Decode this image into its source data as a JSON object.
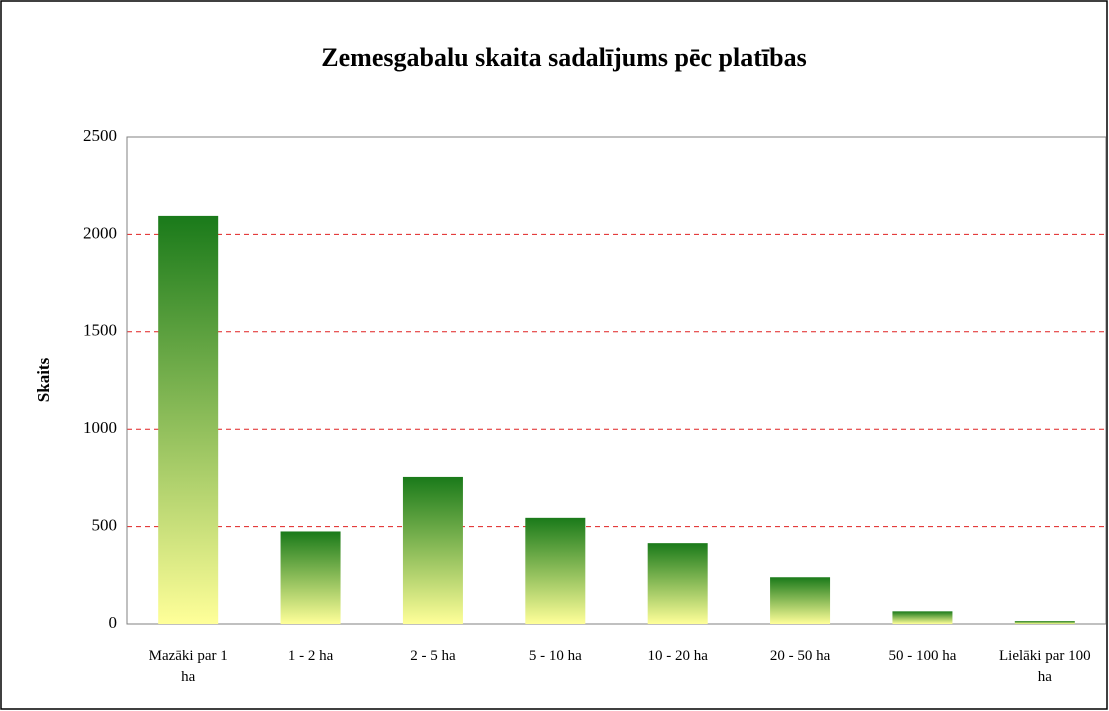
{
  "chart_data": {
    "type": "bar",
    "title": "Zemesgabalu skaita sadalījums pēc platības",
    "ylabel": "Skaits",
    "categories": [
      "Mazāki par 1 ha",
      "1 - 2 ha",
      "2 - 5 ha",
      "5 - 10 ha",
      "10 - 20 ha",
      "20 - 50 ha",
      "50 - 100 ha",
      "Lielāki par 100 ha"
    ],
    "values": [
      2095,
      475,
      755,
      545,
      415,
      240,
      65,
      15
    ],
    "color": "#1a7a1a",
    "gradient_color": "#ffff99",
    "ylim": [
      0,
      2500
    ],
    "yticks": [
      0,
      500,
      1000,
      1500,
      2000,
      2500
    ],
    "grid": true
  }
}
